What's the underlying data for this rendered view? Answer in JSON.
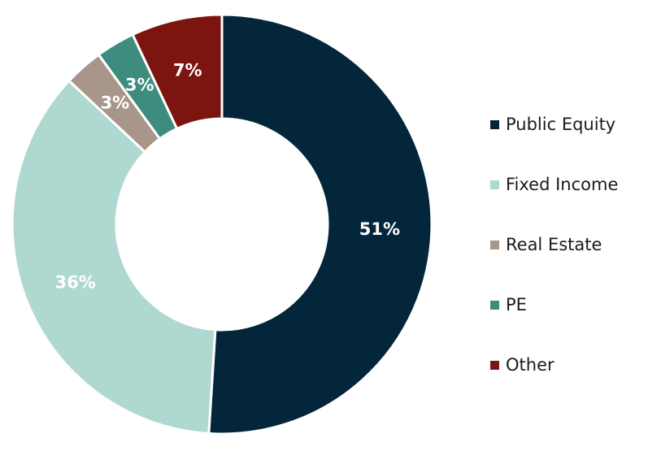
{
  "chart_data": {
    "type": "pie",
    "variant": "donut",
    "categories": [
      "Public Equity",
      "Fixed Income",
      "Real Estate",
      "PE",
      "Other"
    ],
    "values": [
      51,
      36,
      3,
      3,
      7
    ],
    "labels": [
      "51%",
      "36%",
      "3%",
      "3%",
      "7%"
    ],
    "colors": [
      "#03263b",
      "#afd8d0",
      "#a9968a",
      "#3d8c7e",
      "#7c1510"
    ],
    "label_colors": [
      "#ffffff",
      "#ffffff",
      "#ffffff",
      "#ffffff",
      "#ffffff"
    ],
    "legend_position": "right",
    "start": "top",
    "direction": "clockwise"
  }
}
